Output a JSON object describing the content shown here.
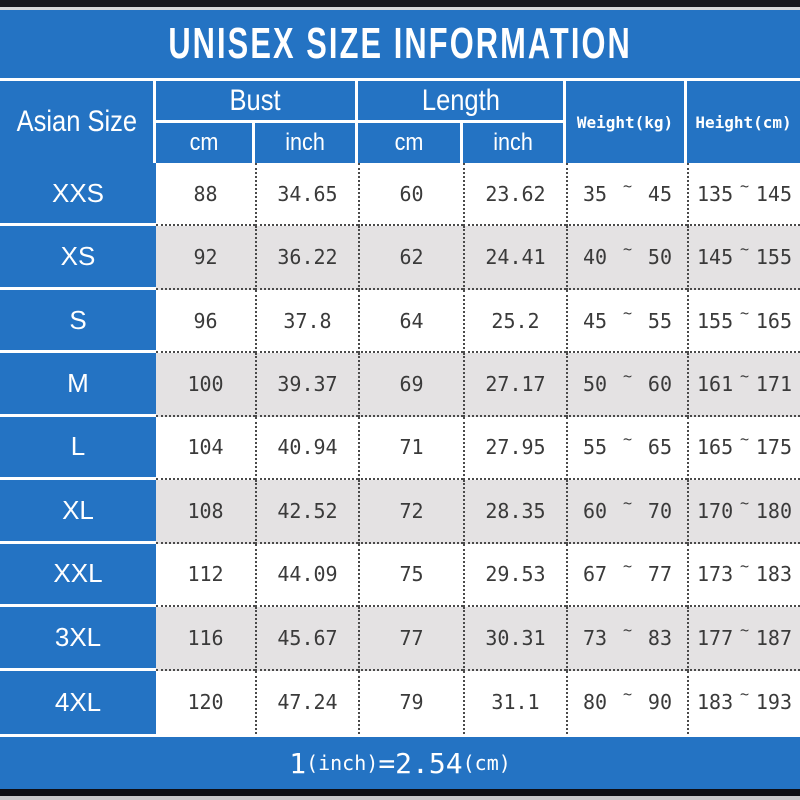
{
  "title": "UNISEX SIZE INFORMATION",
  "colors": {
    "blue": "#2473c3",
    "alt_row": "#e4e2e3",
    "data_text": "#3a3a3a",
    "top_bar": "#17171f",
    "bottom_bar": "#0d0d13"
  },
  "chart_data": {
    "type": "table",
    "title": "UNISEX SIZE INFORMATION",
    "header": {
      "size_col": "Asian Size",
      "bust_group": "Bust",
      "length_group": "Length",
      "weight_col": "Weight(kg)",
      "height_col": "Height(cm)",
      "bust_cm": "cm",
      "bust_inch": "inch",
      "length_cm": "cm",
      "length_inch": "inch"
    },
    "range_separator": "~",
    "rows": [
      {
        "size": "XXS",
        "bust_cm": "88",
        "bust_inch": "34.65",
        "length_cm": "60",
        "length_inch": "23.62",
        "weight_min": "35",
        "weight_max": "45",
        "height_min": "135",
        "height_max": "145"
      },
      {
        "size": "XS",
        "bust_cm": "92",
        "bust_inch": "36.22",
        "length_cm": "62",
        "length_inch": "24.41",
        "weight_min": "40",
        "weight_max": "50",
        "height_min": "145",
        "height_max": "155"
      },
      {
        "size": "S",
        "bust_cm": "96",
        "bust_inch": "37.8",
        "length_cm": "64",
        "length_inch": "25.2",
        "weight_min": "45",
        "weight_max": "55",
        "height_min": "155",
        "height_max": "165"
      },
      {
        "size": "M",
        "bust_cm": "100",
        "bust_inch": "39.37",
        "length_cm": "69",
        "length_inch": "27.17",
        "weight_min": "50",
        "weight_max": "60",
        "height_min": "161",
        "height_max": "171"
      },
      {
        "size": "L",
        "bust_cm": "104",
        "bust_inch": "40.94",
        "length_cm": "71",
        "length_inch": "27.95",
        "weight_min": "55",
        "weight_max": "65",
        "height_min": "165",
        "height_max": "175"
      },
      {
        "size": "XL",
        "bust_cm": "108",
        "bust_inch": "42.52",
        "length_cm": "72",
        "length_inch": "28.35",
        "weight_min": "60",
        "weight_max": "70",
        "height_min": "170",
        "height_max": "180"
      },
      {
        "size": "XXL",
        "bust_cm": "112",
        "bust_inch": "44.09",
        "length_cm": "75",
        "length_inch": "29.53",
        "weight_min": "67",
        "weight_max": "77",
        "height_min": "173",
        "height_max": "183"
      },
      {
        "size": "3XL",
        "bust_cm": "116",
        "bust_inch": "45.67",
        "length_cm": "77",
        "length_inch": "30.31",
        "weight_min": "73",
        "weight_max": "83",
        "height_min": "177",
        "height_max": "187"
      },
      {
        "size": "4XL",
        "bust_cm": "120",
        "bust_inch": "47.24",
        "length_cm": "79",
        "length_inch": "31.1",
        "weight_min": "80",
        "weight_max": "90",
        "height_min": "183",
        "height_max": "193"
      }
    ],
    "footer": {
      "n1": "1",
      "u1": "(inch)",
      "eq": "=",
      "n2": "2.54",
      "u2": "(cm)"
    }
  }
}
